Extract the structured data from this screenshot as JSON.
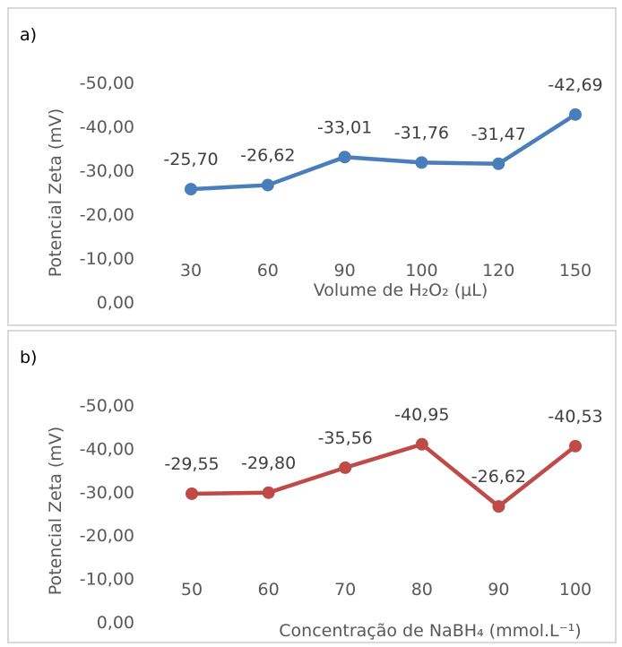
{
  "chart_data": [
    {
      "panel_label": "a)",
      "type": "line",
      "categories": [
        "30",
        "60",
        "90",
        "100",
        "120",
        "150"
      ],
      "series": [
        {
          "values": [
            -25.7,
            -26.62,
            -33.01,
            -31.76,
            -31.47,
            -42.69
          ],
          "data_labels": [
            "-25,70",
            "-26,62",
            "-33,01",
            "-31,76",
            "-31,47",
            "-42,69"
          ],
          "color": "#4a7ebb"
        }
      ],
      "xlabel": "Volume de H₂O₂ (µL)",
      "ylabel": "Potencial Zeta (mV)",
      "ylim": [
        0,
        -50
      ],
      "y_reversed": true,
      "y_ticks": [
        "-50,00",
        "-40,00",
        "-30,00",
        "-20,00",
        "-10,00",
        "0,00"
      ],
      "grid": false,
      "legend": "none"
    },
    {
      "panel_label": "b)",
      "type": "line",
      "categories": [
        "50",
        "60",
        "70",
        "80",
        "90",
        "100"
      ],
      "series": [
        {
          "values": [
            -29.55,
            -29.8,
            -35.56,
            -40.95,
            -26.62,
            -40.53
          ],
          "data_labels": [
            "-29,55",
            "-29,80",
            "-35,56",
            "-40,95",
            "-26,62",
            "-40,53"
          ],
          "color": "#be4b48"
        }
      ],
      "xlabel": "Concentração de NaBH₄ (mmol.L⁻¹)",
      "ylabel": "Potencial Zeta (mV)",
      "ylim": [
        0,
        -50
      ],
      "y_reversed": true,
      "y_ticks": [
        "-50,00",
        "-40,00",
        "-30,00",
        "-20,00",
        "-10,00",
        "0,00"
      ],
      "grid": false,
      "legend": "none"
    }
  ]
}
